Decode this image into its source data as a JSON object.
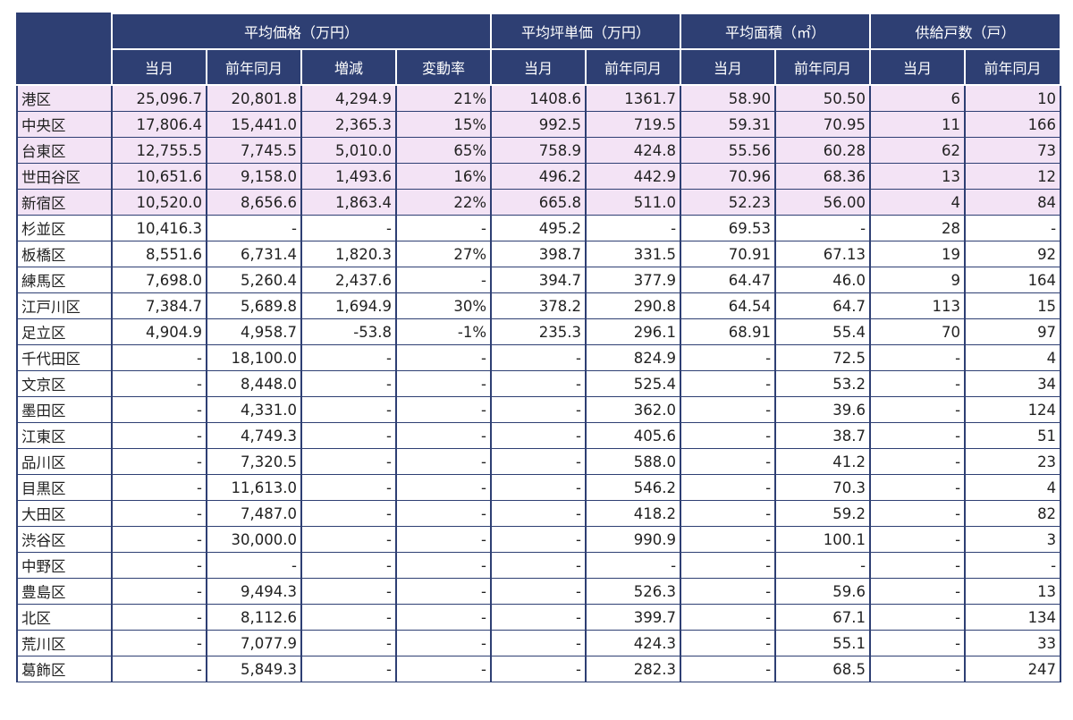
{
  "table": {
    "group_headers": [
      "平均価格（万円）",
      "平均坪単価（万円）",
      "平均面積（㎡）",
      "供給戸数（戸）"
    ],
    "sub_headers": [
      "当月",
      "前年同月",
      "増減",
      "変動率",
      "当月",
      "前年同月",
      "当月",
      "前年同月",
      "当月",
      "前年同月"
    ],
    "rows": [
      {
        "name": "港区",
        "highlight": true,
        "cells": [
          "25,096.7",
          "20,801.8",
          "4,294.9",
          "21%",
          "1408.6",
          "1361.7",
          "58.90",
          "50.50",
          "6",
          "10"
        ]
      },
      {
        "name": "中央区",
        "highlight": true,
        "cells": [
          "17,806.4",
          "15,441.0",
          "2,365.3",
          "15%",
          "992.5",
          "719.5",
          "59.31",
          "70.95",
          "11",
          "166"
        ]
      },
      {
        "name": "台東区",
        "highlight": true,
        "cells": [
          "12,755.5",
          "7,745.5",
          "5,010.0",
          "65%",
          "758.9",
          "424.8",
          "55.56",
          "60.28",
          "62",
          "73"
        ]
      },
      {
        "name": "世田谷区",
        "highlight": true,
        "cells": [
          "10,651.6",
          "9,158.0",
          "1,493.6",
          "16%",
          "496.2",
          "442.9",
          "70.96",
          "68.36",
          "13",
          "12"
        ]
      },
      {
        "name": "新宿区",
        "highlight": true,
        "cells": [
          "10,520.0",
          "8,656.6",
          "1,863.4",
          "22%",
          "665.8",
          "511.0",
          "52.23",
          "56.00",
          "4",
          "84"
        ]
      },
      {
        "name": "杉並区",
        "highlight": false,
        "cells": [
          "10,416.3",
          "-",
          "-",
          "-",
          "495.2",
          "-",
          "69.53",
          "-",
          "28",
          "-"
        ]
      },
      {
        "name": "板橋区",
        "highlight": false,
        "cells": [
          "8,551.6",
          "6,731.4",
          "1,820.3",
          "27%",
          "398.7",
          "331.5",
          "70.91",
          "67.13",
          "19",
          "92"
        ]
      },
      {
        "name": "練馬区",
        "highlight": false,
        "cells": [
          "7,698.0",
          "5,260.4",
          "2,437.6",
          "-",
          "394.7",
          "377.9",
          "64.47",
          "46.0",
          "9",
          "164"
        ]
      },
      {
        "name": "江戸川区",
        "highlight": false,
        "cells": [
          "7,384.7",
          "5,689.8",
          "1,694.9",
          "30%",
          "378.2",
          "290.8",
          "64.54",
          "64.7",
          "113",
          "15"
        ]
      },
      {
        "name": "足立区",
        "highlight": false,
        "cells": [
          "4,904.9",
          "4,958.7",
          "-53.8",
          "-1%",
          "235.3",
          "296.1",
          "68.91",
          "55.4",
          "70",
          "97"
        ]
      },
      {
        "name": "千代田区",
        "highlight": false,
        "cells": [
          "-",
          "18,100.0",
          "-",
          "-",
          "-",
          "824.9",
          "-",
          "72.5",
          "-",
          "4"
        ]
      },
      {
        "name": "文京区",
        "highlight": false,
        "cells": [
          "-",
          "8,448.0",
          "-",
          "-",
          "-",
          "525.4",
          "-",
          "53.2",
          "-",
          "34"
        ]
      },
      {
        "name": "墨田区",
        "highlight": false,
        "cells": [
          "-",
          "4,331.0",
          "-",
          "-",
          "-",
          "362.0",
          "-",
          "39.6",
          "-",
          "124"
        ]
      },
      {
        "name": "江東区",
        "highlight": false,
        "cells": [
          "-",
          "4,749.3",
          "-",
          "-",
          "-",
          "405.6",
          "-",
          "38.7",
          "-",
          "51"
        ]
      },
      {
        "name": "品川区",
        "highlight": false,
        "cells": [
          "-",
          "7,320.5",
          "-",
          "-",
          "-",
          "588.0",
          "-",
          "41.2",
          "-",
          "23"
        ]
      },
      {
        "name": "目黒区",
        "highlight": false,
        "cells": [
          "-",
          "11,613.0",
          "-",
          "-",
          "-",
          "546.2",
          "-",
          "70.3",
          "-",
          "4"
        ]
      },
      {
        "name": "大田区",
        "highlight": false,
        "cells": [
          "-",
          "7,487.0",
          "-",
          "-",
          "-",
          "418.2",
          "-",
          "59.2",
          "-",
          "82"
        ]
      },
      {
        "name": "渋谷区",
        "highlight": false,
        "cells": [
          "-",
          "30,000.0",
          "-",
          "-",
          "-",
          "990.9",
          "-",
          "100.1",
          "-",
          "3"
        ]
      },
      {
        "name": "中野区",
        "highlight": false,
        "cells": [
          "-",
          "-",
          "-",
          "-",
          "-",
          "-",
          "-",
          "-",
          "-",
          "-"
        ]
      },
      {
        "name": "豊島区",
        "highlight": false,
        "cells": [
          "-",
          "9,494.3",
          "-",
          "-",
          "-",
          "526.3",
          "-",
          "59.6",
          "-",
          "13"
        ]
      },
      {
        "name": "北区",
        "highlight": false,
        "cells": [
          "-",
          "8,112.6",
          "-",
          "-",
          "-",
          "399.7",
          "-",
          "67.1",
          "-",
          "134"
        ]
      },
      {
        "name": "荒川区",
        "highlight": false,
        "cells": [
          "-",
          "7,077.9",
          "-",
          "-",
          "-",
          "424.3",
          "-",
          "55.1",
          "-",
          "33"
        ]
      },
      {
        "name": "葛飾区",
        "highlight": false,
        "cells": [
          "-",
          "5,849.3",
          "-",
          "-",
          "-",
          "282.3",
          "-",
          "68.5",
          "-",
          "247"
        ]
      }
    ]
  },
  "colors": {
    "header_bg": "#2e3f73",
    "highlight_bg": "#f3e3f5",
    "border": "#2e3f73"
  }
}
